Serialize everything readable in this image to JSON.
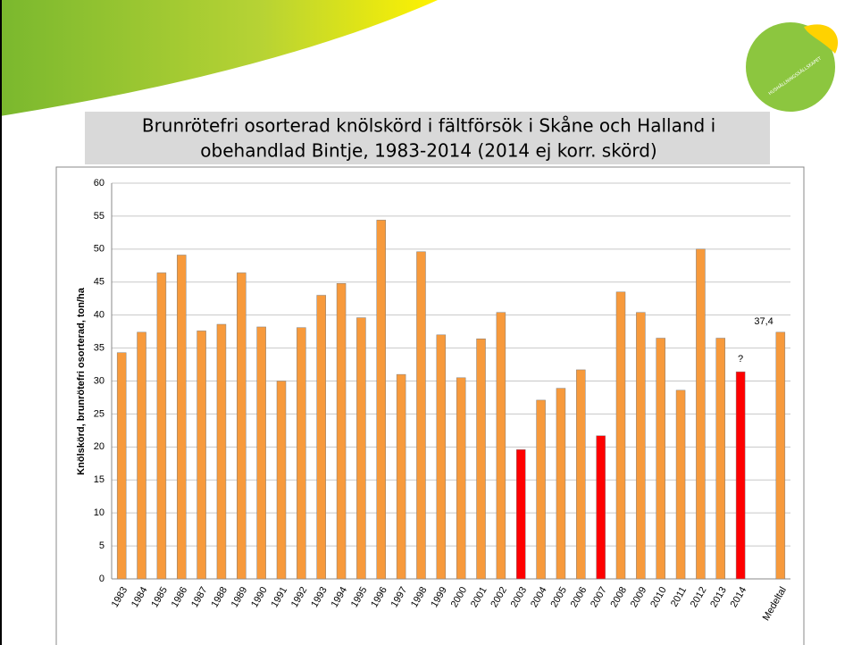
{
  "logo_text": "HUSHÅLLNINGSSÄLLSKAPET",
  "chart_data": {
    "type": "bar",
    "title": [
      "Brunrötefri osorterad knölskörd i fältförsök i Skåne och Halland i",
      "obehandlad Bintje, 1983-2014 (2014 ej korr. skörd)"
    ],
    "ylabel": "Knölskörd, brunrötefri osorterad, ton/ha",
    "categories": [
      "1983",
      "1984",
      "1985",
      "1986",
      "1987",
      "1988",
      "1989",
      "1990",
      "1991",
      "1992",
      "1993",
      "1994",
      "1995",
      "1996",
      "1997",
      "1998",
      "1999",
      "2000",
      "2001",
      "2002",
      "2003",
      "2004",
      "2005",
      "2006",
      "2007",
      "2008",
      "2009",
      "2010",
      "2011",
      "2012",
      "2013",
      "2014",
      null,
      "Medeltal"
    ],
    "values": [
      34.3,
      37.4,
      46.4,
      49.1,
      37.6,
      38.6,
      46.4,
      38.2,
      30.0,
      38.1,
      43.0,
      44.8,
      39.6,
      54.4,
      31.0,
      49.6,
      37.0,
      30.5,
      36.4,
      40.4,
      19.6,
      27.1,
      28.9,
      31.7,
      21.7,
      43.5,
      40.4,
      36.5,
      28.6,
      50.0,
      36.5,
      31.4,
      null,
      37.4
    ],
    "value_labels": [
      null,
      null,
      null,
      null,
      null,
      null,
      null,
      null,
      null,
      null,
      null,
      null,
      null,
      null,
      null,
      null,
      null,
      null,
      null,
      null,
      null,
      null,
      null,
      null,
      null,
      null,
      null,
      null,
      null,
      null,
      null,
      null,
      null,
      "37,4"
    ],
    "colors": [
      "#f79a3c",
      "#f79a3c",
      "#f79a3c",
      "#f79a3c",
      "#f79a3c",
      "#f79a3c",
      "#f79a3c",
      "#f79a3c",
      "#f79a3c",
      "#f79a3c",
      "#f79a3c",
      "#f79a3c",
      "#f79a3c",
      "#f79a3c",
      "#f79a3c",
      "#f79a3c",
      "#f79a3c",
      "#f79a3c",
      "#f79a3c",
      "#f79a3c",
      "#ff0000",
      "#f79a3c",
      "#f79a3c",
      "#f79a3c",
      "#ff0000",
      "#f79a3c",
      "#f79a3c",
      "#f79a3c",
      "#f79a3c",
      "#f79a3c",
      "#f79a3c",
      "#ff0000",
      null,
      "#f79a3c"
    ],
    "annotations": [
      {
        "text": "?",
        "category": "2014"
      }
    ],
    "ylim": [
      0,
      60
    ],
    "yticks": [
      0,
      5,
      10,
      15,
      20,
      25,
      30,
      35,
      40,
      45,
      50,
      55,
      60
    ],
    "grid": true
  }
}
